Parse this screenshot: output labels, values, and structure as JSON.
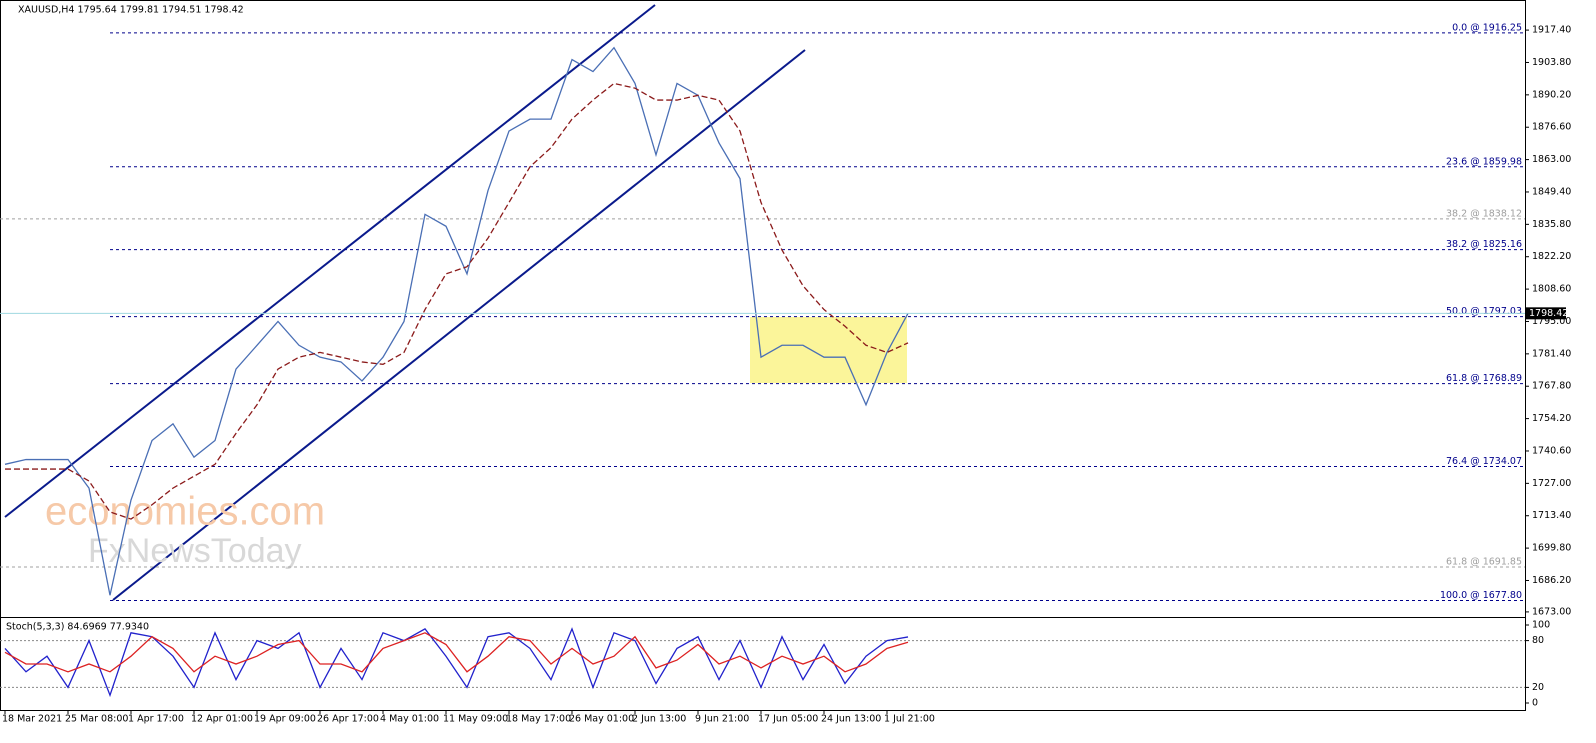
{
  "chart_data": [
    {
      "type": "line",
      "title": "XAUUSD,H4  1795.64 1799.81 1794.51 1798.42",
      "categories": [
        "18 Mar 2021",
        null,
        null,
        "25 Mar 08:00",
        null,
        null,
        "1 Apr 17:00",
        null,
        null,
        "12 Apr 01:00",
        null,
        null,
        "19 Apr 09:00",
        null,
        null,
        "26 Apr 17:00",
        null,
        null,
        "4 May 01:00",
        null,
        null,
        "11 May 09:00",
        null,
        null,
        "18 May 17:00",
        null,
        null,
        "26 May 01:00",
        null,
        null,
        "2 Jun 13:00",
        null,
        null,
        "9 Jun 21:00",
        null,
        null,
        "17 Jun 05:00",
        null,
        null,
        "24 Jun 13:00",
        null,
        null,
        "1 Jul 21:00",
        null
      ],
      "series": [
        {
          "color": "#4a6fb5",
          "values": [
            1735,
            1737,
            1737,
            1737,
            1725,
            1680,
            1720,
            1745,
            1752,
            1738,
            1745,
            1775,
            1785,
            1795,
            1785,
            1780,
            1778,
            1770,
            1780,
            1795,
            1840,
            1835,
            1815,
            1850,
            1875,
            1880,
            1880,
            1905,
            1900,
            1910,
            1895,
            1865,
            1895,
            1890,
            1870,
            1855,
            1780,
            1785,
            1785,
            1780,
            1780,
            1760,
            1782,
            1798.42
          ]
        },
        {
          "color": "#8b1a1a",
          "dashed": true,
          "values": [
            1733,
            1733,
            1733,
            1733,
            1728,
            1715,
            1712,
            1718,
            1725,
            1730,
            1735,
            1748,
            1760,
            1775,
            1780,
            1782,
            1780,
            1778,
            1777,
            1782,
            1800,
            1815,
            1818,
            1830,
            1845,
            1860,
            1868,
            1880,
            1888,
            1895,
            1893,
            1888,
            1888,
            1890,
            1888,
            1875,
            1845,
            1825,
            1810,
            1800,
            1793,
            1785,
            1782,
            1786
          ]
        }
      ],
      "ylim": [
        1671.7,
        1929.2
      ],
      "yticks": [
        {
          "value": 1917.4,
          "label": "1917.40"
        },
        {
          "value": 1903.8,
          "label": "1903.80"
        },
        {
          "value": 1890.2,
          "label": "1890.20"
        },
        {
          "value": 1876.6,
          "label": "1876.60"
        },
        {
          "value": 1863,
          "label": "1863.00"
        },
        {
          "value": 1849.4,
          "label": "1849.40"
        },
        {
          "value": 1835.8,
          "label": "1835.80"
        },
        {
          "value": 1822.2,
          "label": "1822.20"
        },
        {
          "value": 1808.6,
          "label": "1808.60"
        },
        {
          "value": 1795,
          "label": "1795.00"
        },
        {
          "value": 1781.4,
          "label": "1781.40"
        },
        {
          "value": 1767.8,
          "label": "1767.80"
        },
        {
          "value": 1754.2,
          "label": "1754.20"
        },
        {
          "value": 1740.6,
          "label": "1740.60"
        },
        {
          "value": 1727,
          "label": "1727.00"
        },
        {
          "value": 1713.4,
          "label": "1713.40"
        },
        {
          "value": 1699.8,
          "label": "1699.80"
        },
        {
          "value": 1686.2,
          "label": "1686.20"
        },
        {
          "value": 1673,
          "label": "1673.00"
        }
      ],
      "fib_levels": [
        {
          "value": 1916.25,
          "label": "0.0 @ 1916.25",
          "color": "#00008b"
        },
        {
          "value": 1859.98,
          "label": "23.6 @ 1859.98",
          "color": "#00008b"
        },
        {
          "value": 1838.12,
          "label": "38.2 @ 1838.12",
          "color": "#a0a0a0"
        },
        {
          "value": 1825.16,
          "label": "38.2 @ 1825.16",
          "color": "#00008b"
        },
        {
          "value": 1797.03,
          "label": "50.0 @ 1797.03",
          "color": "#00008b"
        },
        {
          "value": 1768.89,
          "label": "61.8 @ 1768.89",
          "color": "#00008b"
        },
        {
          "value": 1734.07,
          "label": "76.4 @ 1734.07",
          "color": "#00008b"
        },
        {
          "value": 1691.85,
          "label": "61.8 @ 1691.85",
          "color": "#a0a0a0"
        },
        {
          "value": 1677.8,
          "label": "100.0 @ 1677.80",
          "color": "#00008b"
        }
      ],
      "last_price": 1798.42,
      "watermark": [
        "economies.com",
        "FxNewsToday"
      ]
    },
    {
      "type": "line",
      "title": "Stoch(5,3,3) 84.6969 77.9340",
      "series": [
        {
          "color": "#2222cc",
          "values": [
            70,
            40,
            60,
            20,
            80,
            10,
            90,
            85,
            60,
            20,
            90,
            30,
            80,
            70,
            90,
            20,
            70,
            30,
            90,
            80,
            95,
            60,
            20,
            85,
            90,
            70,
            30,
            95,
            20,
            90,
            80,
            25,
            70,
            85,
            30,
            80,
            20,
            85,
            30,
            75,
            25,
            60,
            80,
            84.6969
          ]
        },
        {
          "color": "#dd2222",
          "values": [
            65,
            50,
            50,
            40,
            50,
            40,
            60,
            85,
            70,
            40,
            60,
            50,
            60,
            75,
            80,
            50,
            50,
            40,
            70,
            80,
            90,
            75,
            40,
            60,
            85,
            80,
            50,
            70,
            50,
            60,
            85,
            45,
            55,
            75,
            50,
            60,
            45,
            60,
            50,
            60,
            40,
            50,
            70,
            77.934
          ]
        }
      ],
      "ylim": [
        0,
        100
      ],
      "yticks": [
        0,
        20,
        80,
        100
      ]
    }
  ]
}
